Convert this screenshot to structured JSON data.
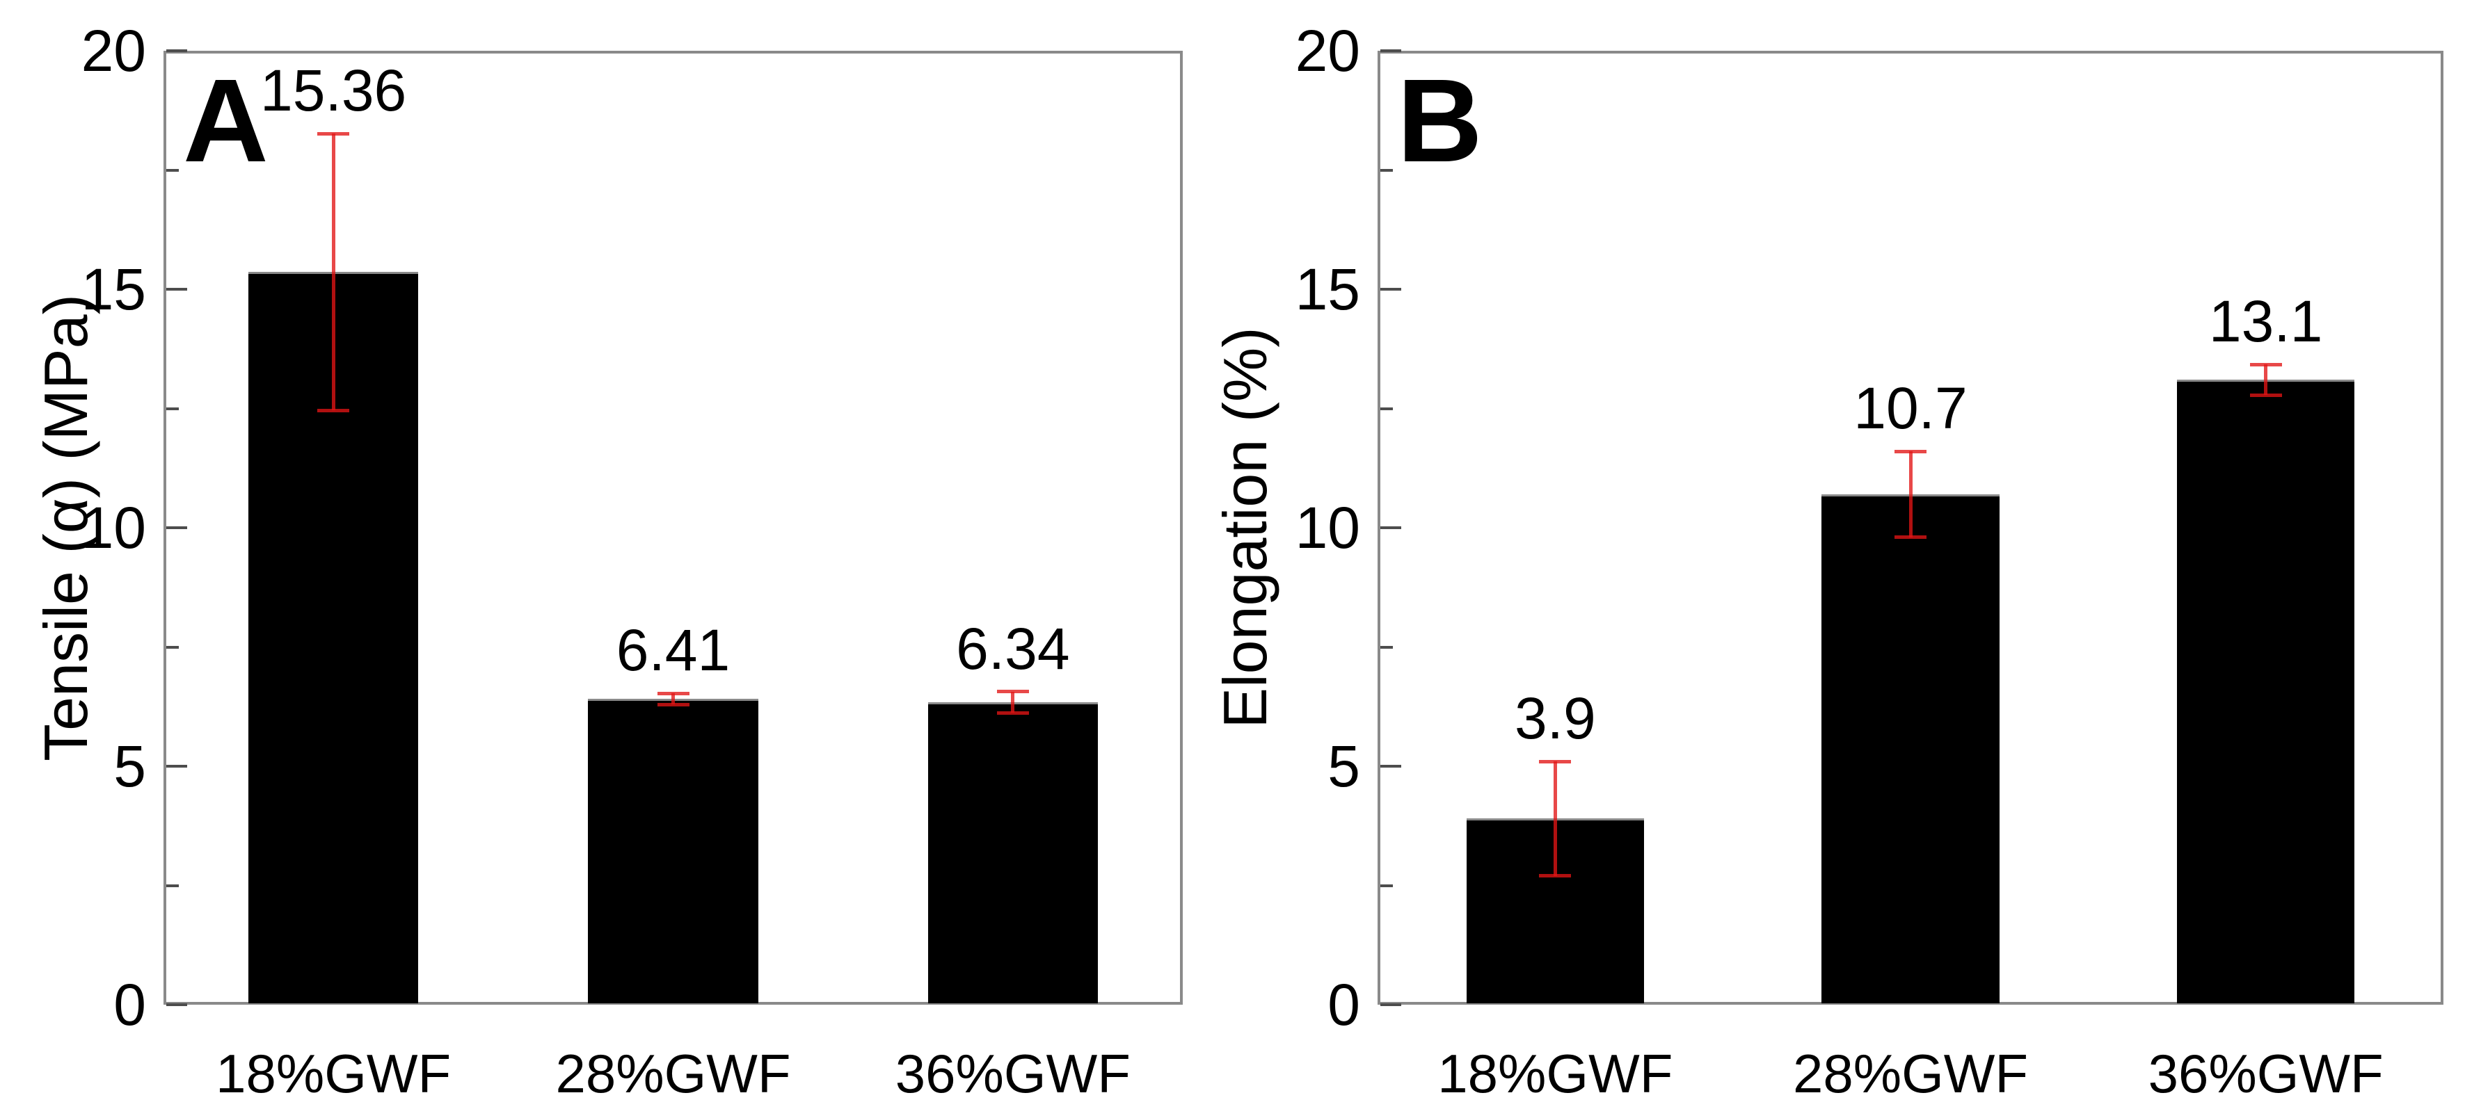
{
  "style": {
    "bar_color": "#000000",
    "error_color": "#e11414",
    "frame_color": "#8a8a8a",
    "tick_color": "#4d4d4d",
    "text_color": "#000000",
    "background": "#ffffff"
  },
  "chart_data": [
    {
      "type": "bar",
      "panel_label": "A",
      "ylabel": "Tensile (α) (MPa)",
      "xlabel": "",
      "ylim": [
        0,
        20
      ],
      "yticks": [
        0,
        5,
        10,
        15,
        20
      ],
      "minor_tick_step": 2.5,
      "categories": [
        "18%GWF",
        "28%GWF",
        "36%GWF"
      ],
      "values": [
        15.36,
        6.41,
        6.34
      ],
      "value_labels": [
        "15.36",
        "6.41",
        "6.34"
      ],
      "errors": [
        2.9,
        0.12,
        0.22
      ],
      "bar_color": "#000000",
      "error_color": "#e11414",
      "grid": false,
      "legend": "none"
    },
    {
      "type": "bar",
      "panel_label": "B",
      "ylabel": "Elongation (%)",
      "xlabel": "",
      "ylim": [
        0,
        20
      ],
      "yticks": [
        0,
        5,
        10,
        15,
        20
      ],
      "minor_tick_step": 2.5,
      "categories": [
        "18%GWF",
        "28%GWF",
        "36%GWF"
      ],
      "values": [
        3.9,
        10.7,
        13.1
      ],
      "value_labels": [
        "3.9",
        "10.7",
        "13.1"
      ],
      "errors": [
        1.2,
        0.9,
        0.32
      ],
      "bar_color": "#000000",
      "error_color": "#e11414",
      "grid": false,
      "legend": "none"
    }
  ]
}
